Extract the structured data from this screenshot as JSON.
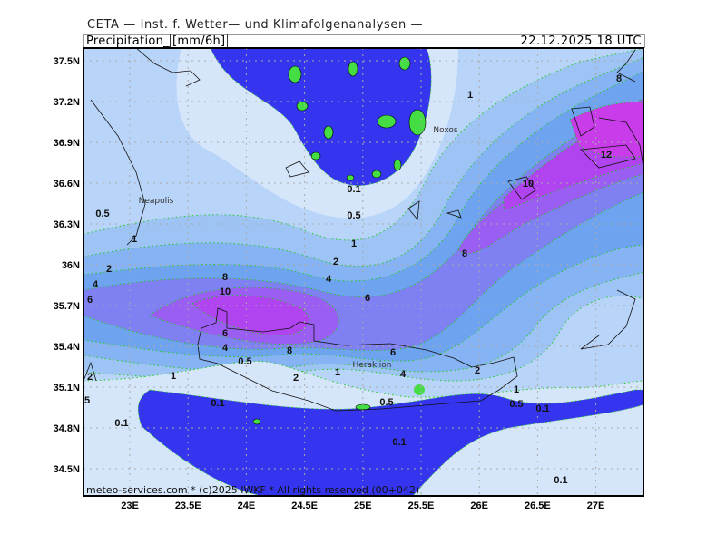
{
  "header": {
    "organization": "CETA — Inst. f. Wetter— und Klimafolgenanalysen —",
    "parameter": "Precipitation",
    "unit": "[mm/6h]",
    "valid_time": "22.12.2025  18 UTC"
  },
  "footer": {
    "copyright": "meteo-services.com * (c)2025 IWKF * All rights reserved (00+042)"
  },
  "map": {
    "lat_ticks": [
      "37.5N",
      "37.2N",
      "36.9N",
      "36.6N",
      "36.3N",
      "36N",
      "35.7N",
      "35.4N",
      "35.1N",
      "34.8N",
      "34.5N"
    ],
    "lat_values": [
      37.5,
      37.2,
      36.9,
      36.6,
      36.3,
      36.0,
      35.7,
      35.4,
      35.1,
      34.8,
      34.5
    ],
    "lon_ticks": [
      "23E",
      "23.5E",
      "24E",
      "24.5E",
      "25E",
      "25.5E",
      "26E",
      "26.5E",
      "27E"
    ],
    "lon_values": [
      23,
      23.5,
      24,
      24.5,
      25,
      25.5,
      26,
      26.5,
      27
    ],
    "places": [
      "Noxos",
      "Neapolis",
      "Heraklion"
    ],
    "contour_labels": [
      "1",
      "0.1",
      "0.5",
      "1",
      "2",
      "4",
      "6",
      "8",
      "10",
      "12",
      "8",
      "0.5",
      "1",
      "2",
      "4",
      "6",
      "8",
      "10",
      "6",
      "4",
      "8",
      "6",
      "0.5",
      "1",
      "2",
      "1",
      "4",
      "2",
      "2",
      "5",
      "1",
      "0.5",
      "0.1",
      "0.5",
      "0.1",
      "0.1",
      "0.1",
      "0.1"
    ],
    "levels": [
      0.1,
      0.5,
      1,
      2,
      4,
      6,
      8,
      10,
      12
    ],
    "colors": {
      "below_0.1": "#3535f0",
      "0.1-0.5": "#d6e6fa",
      "0.5-1": "#b8d4f8",
      "1-2": "#9ec4f6",
      "2-4": "#86b3f3",
      "4-6": "#6ea3f0",
      "6-8": "#7f80f2",
      "8-10": "#9a5ef2",
      "10-12": "#b044f0",
      "above_12": "#c83cea",
      "land_dry": "#44dd44",
      "contour_line": "#22cc22"
    }
  }
}
